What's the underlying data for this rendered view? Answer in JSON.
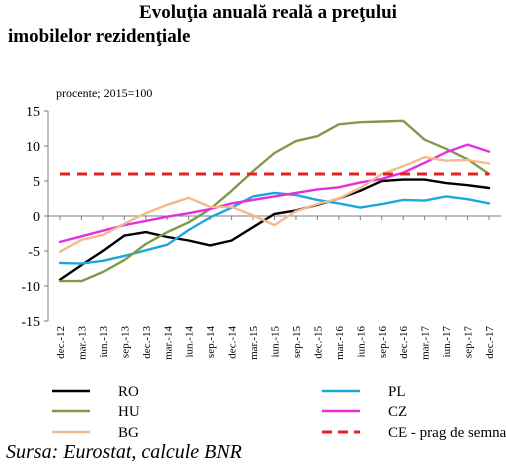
{
  "title_line1": "Evoluţia anuală reală a preţului",
  "title_line2": "imobilelor rezidenţiale",
  "unit_label": "procente; 2015=100",
  "source": "Sursa: Eurostat, calcule BNR",
  "chart_data": {
    "type": "line",
    "ylim": [
      -15,
      15
    ],
    "yticks": [
      -15,
      -10,
      -5,
      0,
      5,
      10,
      15
    ],
    "grid": false,
    "legend_position": "bottom",
    "x_tick_labels": [
      "dec.-12",
      "mar.-13",
      "iun.-13",
      "sep.-13",
      "dec.-13",
      "mar.-14",
      "iun.-14",
      "sep.-14",
      "dec.-14",
      "mar.-15",
      "iun.-15",
      "sep.-15",
      "dec.-15",
      "mar.-16",
      "iun.-16",
      "sep.-16",
      "dec.-16",
      "mar.-17",
      "iun.-17",
      "sep.-17",
      "dec.-17"
    ],
    "series": [
      {
        "name": "RO",
        "color": "#000000",
        "dash": false,
        "values": [
          -9.1,
          -7.0,
          -5.0,
          -2.8,
          -2.3,
          -3.0,
          -3.5,
          -4.2,
          -3.5,
          -1.6,
          0.3,
          0.8,
          1.6,
          2.5,
          3.6,
          5.0,
          5.2,
          5.2,
          4.7,
          4.4,
          4.0
        ]
      },
      {
        "name": "PL",
        "color": "#1ea7dc",
        "dash": false,
        "values": [
          -6.7,
          -6.8,
          -6.4,
          -5.7,
          -4.9,
          -4.1,
          -2.0,
          -0.2,
          1.2,
          2.8,
          3.3,
          3.0,
          2.3,
          1.8,
          1.2,
          1.7,
          2.3,
          2.2,
          2.8,
          2.4,
          1.8
        ]
      },
      {
        "name": "HU",
        "color": "#7f9a48",
        "dash": false,
        "values": [
          -9.3,
          -9.3,
          -8.0,
          -6.3,
          -4.0,
          -2.3,
          -0.9,
          1.0,
          3.6,
          6.4,
          9.0,
          10.7,
          11.4,
          13.1,
          13.4,
          13.5,
          13.6,
          10.9,
          9.6,
          8.1,
          6.0
        ]
      },
      {
        "name": "CZ",
        "color": "#e52ee0",
        "dash": false,
        "values": [
          -3.7,
          -2.9,
          -2.1,
          -1.3,
          -0.7,
          -0.1,
          0.4,
          1.0,
          1.8,
          2.3,
          2.8,
          3.3,
          3.8,
          4.1,
          4.8,
          5.3,
          6.2,
          7.6,
          9.1,
          10.2,
          9.2
        ]
      },
      {
        "name": "BG",
        "color": "#f4b98d",
        "dash": false,
        "values": [
          -5.1,
          -3.4,
          -2.7,
          -1.1,
          0.4,
          1.6,
          2.6,
          1.3,
          1.3,
          0.1,
          -1.3,
          0.7,
          1.7,
          2.5,
          4.0,
          6.0,
          7.1,
          8.4,
          7.9,
          8.0,
          7.5
        ]
      },
      {
        "name": "CE - prag de semnal",
        "color": "#e32222",
        "dash": true,
        "values": [
          6,
          6,
          6,
          6,
          6,
          6,
          6,
          6,
          6,
          6,
          6,
          6,
          6,
          6,
          6,
          6,
          6,
          6,
          6,
          6,
          6
        ]
      }
    ]
  }
}
